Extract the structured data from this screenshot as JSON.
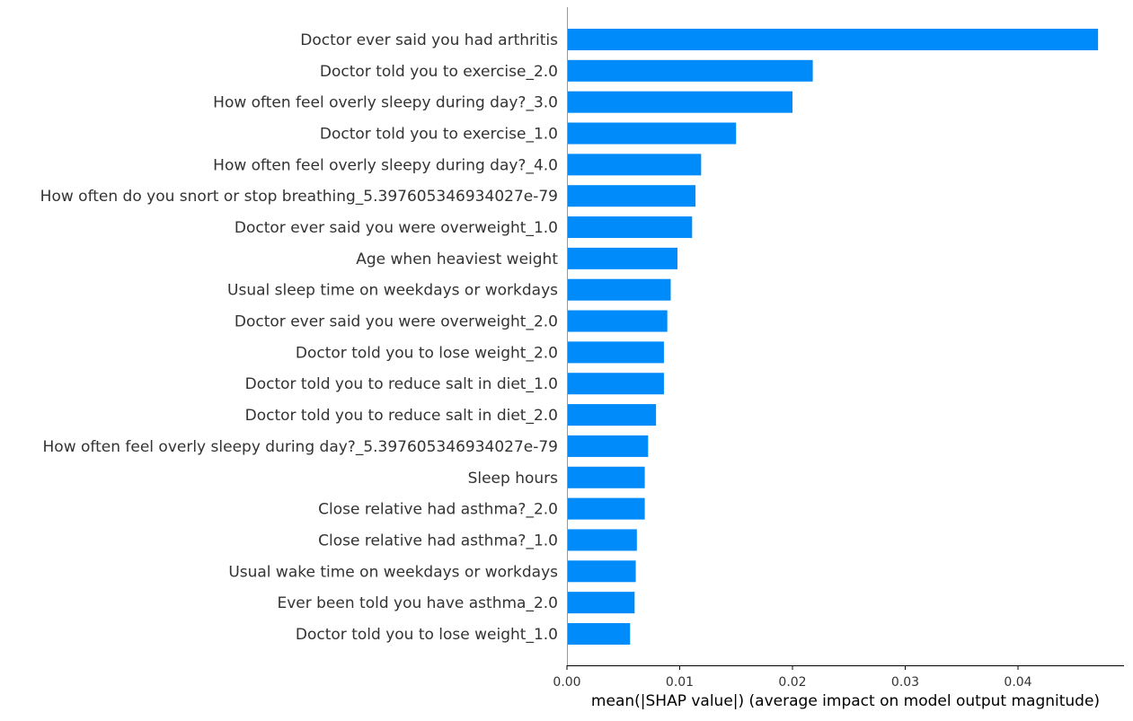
{
  "chart_data": {
    "type": "bar",
    "orientation": "horizontal",
    "categories": [
      "Doctor ever said you had arthritis",
      "Doctor told you to exercise_2.0",
      "How often feel overly sleepy during day?_3.0",
      "Doctor told you to exercise_1.0",
      "How often feel overly sleepy during day?_4.0",
      "How often do you snort or stop breathing_5.397605346934027e-79",
      "Doctor ever said you were overweight_1.0",
      "Age when heaviest weight",
      "Usual sleep time on weekdays or workdays",
      "Doctor ever said you were overweight_2.0",
      "Doctor told you to lose weight_2.0",
      "Doctor told you to reduce salt in diet_1.0",
      "Doctor told you to reduce salt in diet_2.0",
      "How often feel overly sleepy during day?_5.397605346934027e-79",
      "Sleep hours",
      "Close relative had asthma?_2.0",
      "Close relative had asthma?_1.0",
      "Usual wake time on weekdays or workdays",
      "Ever been told you have asthma_2.0",
      "Doctor told you to lose weight_1.0"
    ],
    "values": [
      0.0471,
      0.0218,
      0.02,
      0.015,
      0.0119,
      0.0114,
      0.0111,
      0.0098,
      0.0092,
      0.0089,
      0.0086,
      0.0086,
      0.0079,
      0.0072,
      0.0069,
      0.0069,
      0.0062,
      0.0061,
      0.006,
      0.0056
    ],
    "xlabel": "mean(|SHAP value|) (average impact on model output magnitude)",
    "ylabel": "",
    "title": "",
    "xlim": [
      0,
      0.0494
    ],
    "xticks": [
      0,
      0.01,
      0.02,
      0.03,
      0.04
    ],
    "xtick_labels": [
      "0.00",
      "0.01",
      "0.02",
      "0.03",
      "0.04"
    ],
    "bar_color": "#008bfb",
    "grid": false,
    "legend": "none"
  }
}
